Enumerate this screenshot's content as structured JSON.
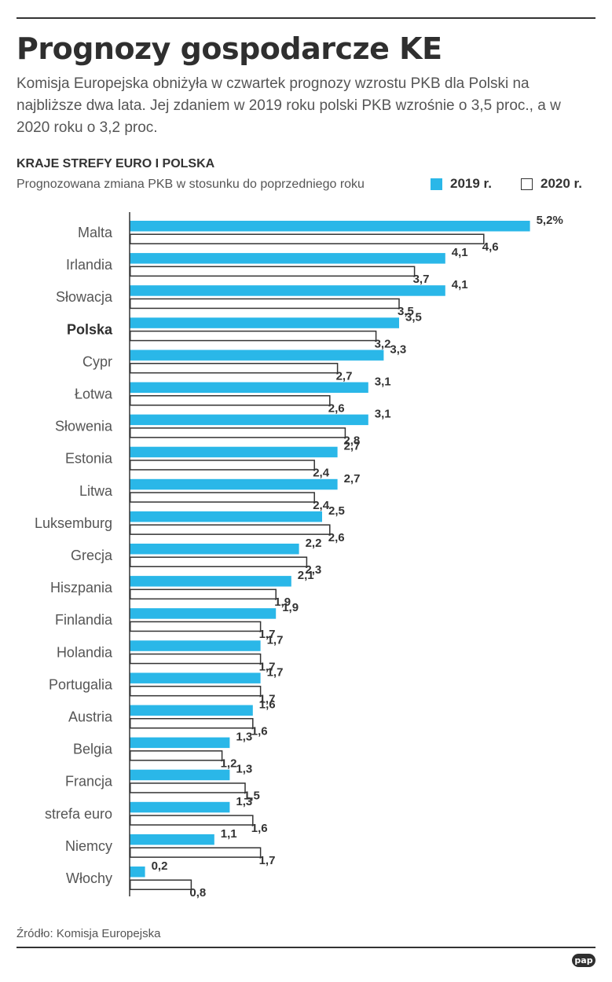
{
  "header": {
    "title": "Prognozy gospodarcze KE",
    "intro": "Komisja Europejska obniżyła w czwartek prognozy wzrostu PKB dla Polski na najbliższe dwa lata. Jej zdaniem w 2019 roku polski PKB wzrośnie o 3,5 proc., a w 2020 roku o 3,2 proc."
  },
  "chart_header": {
    "subhead": "KRAJE STREFY EURO I POLSKA",
    "subtitle": "Prognozowana zmiana PKB w stosunku do poprzedniego roku"
  },
  "legend": {
    "s2019": "2019 r.",
    "s2020": "2020 r."
  },
  "colors": {
    "bar_2019": "#2ab7e8",
    "bar_2020_fill": "#ffffff",
    "bar_2020_stroke": "#333333",
    "text": "#333333"
  },
  "chart_data": {
    "type": "bar",
    "orientation": "horizontal",
    "title": "KRAJE STREFY EURO I POLSKA",
    "subtitle": "Prognozowana zmiana PKB w stosunku do poprzedniego roku",
    "unit": "%",
    "xlim": [
      0,
      5.2
    ],
    "grid": false,
    "legend_position": "top-right",
    "highlight": "Polska",
    "categories": [
      "Malta",
      "Irlandia",
      "Słowacja",
      "Polska",
      "Cypr",
      "Łotwa",
      "Słowenia",
      "Estonia",
      "Litwa",
      "Luksemburg",
      "Grecja",
      "Hiszpania",
      "Finlandia",
      "Holandia",
      "Portugalia",
      "Austria",
      "Belgia",
      "Francja",
      "strefa euro",
      "Niemcy",
      "Włochy"
    ],
    "series": [
      {
        "name": "2019 r.",
        "values": [
          5.2,
          4.1,
          4.1,
          3.5,
          3.3,
          3.1,
          3.1,
          2.7,
          2.7,
          2.5,
          2.2,
          2.1,
          1.9,
          1.7,
          1.7,
          1.6,
          1.3,
          1.3,
          1.3,
          1.1,
          0.2
        ],
        "labels": [
          "5,2%",
          "4,1",
          "4,1",
          "3,5",
          "3,3",
          "3,1",
          "3,1",
          "2,7",
          "2,7",
          "2,5",
          "2,2",
          "2,1",
          "1,9",
          "1,7",
          "1,7",
          "1,6",
          "1,3",
          "1,3",
          "1,3",
          "1,1",
          "0,2"
        ]
      },
      {
        "name": "2020 r.",
        "values": [
          4.6,
          3.7,
          3.5,
          3.2,
          2.7,
          2.6,
          2.8,
          2.4,
          2.4,
          2.6,
          2.3,
          1.9,
          1.7,
          1.7,
          1.7,
          1.6,
          1.2,
          1.5,
          1.6,
          1.7,
          0.8
        ],
        "labels": [
          "4,6",
          "3,7",
          "3,5",
          "3,2",
          "2,7",
          "2,6",
          "2,8",
          "2,4",
          "2,4",
          "2,6",
          "2,3",
          "1,9",
          "1,7",
          "1,7",
          "1,7",
          "1,6",
          "1,2",
          "1,5",
          "1,6",
          "1,7",
          "0,8"
        ]
      }
    ]
  },
  "footer": {
    "source": "Źródło: Komisja Europejska",
    "logo": "pap"
  }
}
